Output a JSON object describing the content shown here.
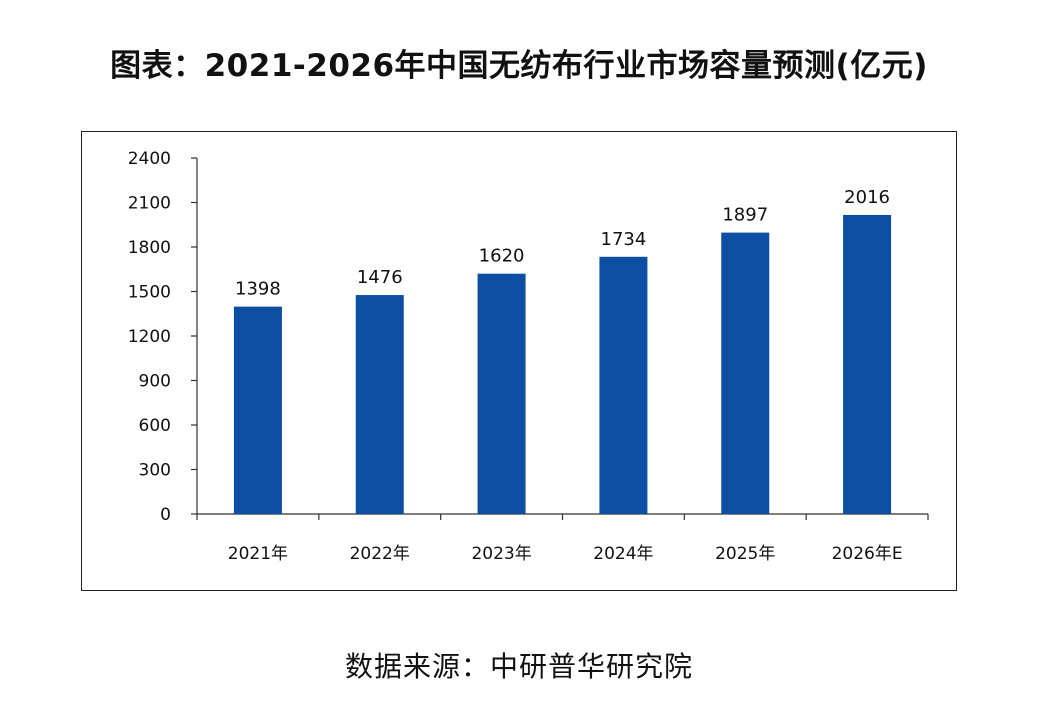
{
  "title": "图表：2021-2026年中国无纺布行业市场容量预测(亿元)",
  "source": "数据来源：中研普华研究院",
  "chart_data": {
    "type": "bar",
    "categories": [
      "2021年",
      "2022年",
      "2023年",
      "2024年",
      "2025年",
      "2026年E"
    ],
    "series": [
      {
        "values": [
          1398,
          1476,
          1620,
          1734,
          1897,
          2016
        ]
      }
    ],
    "data_labels": [
      "1398",
      "1476",
      "1620",
      "1734",
      "1897",
      "2016"
    ],
    "y_ticks": [
      0,
      300,
      600,
      900,
      1200,
      1500,
      1800,
      2100,
      2400
    ],
    "ylim": [
      0,
      2400
    ],
    "bar_color": "#0b4ea2",
    "grid": false,
    "legend": "none"
  }
}
